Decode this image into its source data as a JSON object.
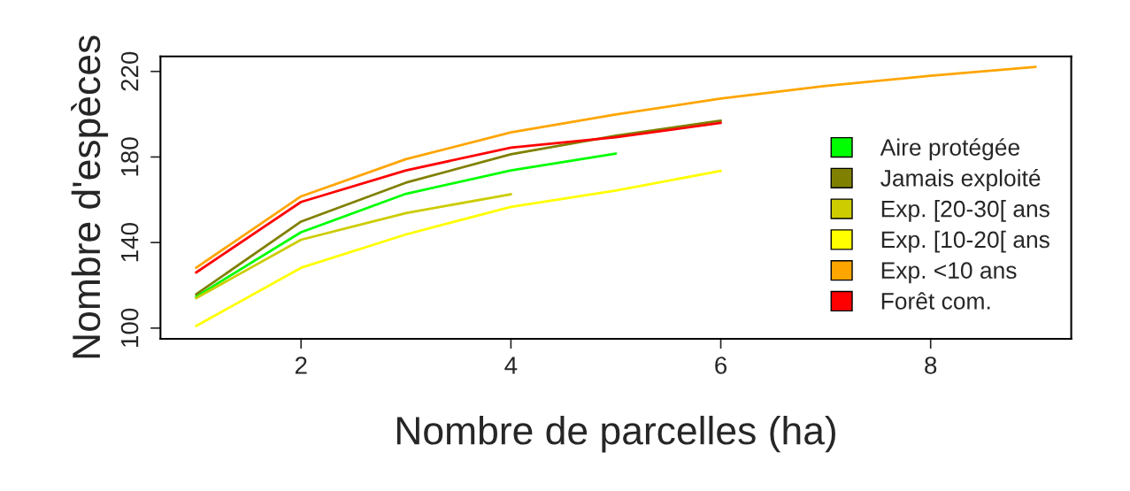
{
  "chart_data": {
    "type": "line",
    "xlabel": "Nombre de parcelles (ha)",
    "ylabel": "Nombre d'espèces",
    "xlim": [
      0.66,
      9.34
    ],
    "ylim": [
      95,
      227
    ],
    "xticks": [
      2,
      4,
      6,
      8
    ],
    "yticks": [
      100,
      140,
      180,
      220
    ],
    "grid": false,
    "legend": "right",
    "marker": "none",
    "line_style": "solid",
    "series": [
      {
        "name": "Aire protégée",
        "color": "#00ff00",
        "x": [
          1,
          2,
          3,
          4,
          5
        ],
        "values": [
          114.7,
          144.8,
          162.8,
          173.7,
          181.6
        ]
      },
      {
        "name": "Jamais exploité",
        "color": "#808000",
        "x": [
          1,
          2,
          3,
          4,
          5,
          6
        ],
        "values": [
          115.8,
          149.8,
          168,
          181.3,
          190,
          197
        ]
      },
      {
        "name": "Exp. [20-30[ ans",
        "color": "#cccc00",
        "x": [
          1,
          2,
          3,
          4
        ],
        "values": [
          114,
          141.3,
          153.8,
          162.6
        ]
      },
      {
        "name": "Exp. [10-20[ ans",
        "color": "#ffff00",
        "x": [
          1,
          2,
          3,
          4,
          5,
          6
        ],
        "values": [
          101,
          128.2,
          143.8,
          156.7,
          164.3,
          173.5
        ]
      },
      {
        "name": "Exp. <10 ans",
        "color": "#ffa500",
        "x": [
          1,
          2,
          3,
          4,
          5,
          6,
          7,
          8,
          9
        ],
        "values": [
          128.2,
          161.6,
          179,
          191.5,
          199.9,
          207.3,
          213.2,
          218,
          222.1
        ]
      },
      {
        "name": "Forêt com.",
        "color": "#ff0000",
        "x": [
          1,
          2,
          3,
          4,
          5,
          6
        ],
        "values": [
          126,
          159,
          173.7,
          184.4,
          189.2,
          196
        ]
      }
    ]
  }
}
